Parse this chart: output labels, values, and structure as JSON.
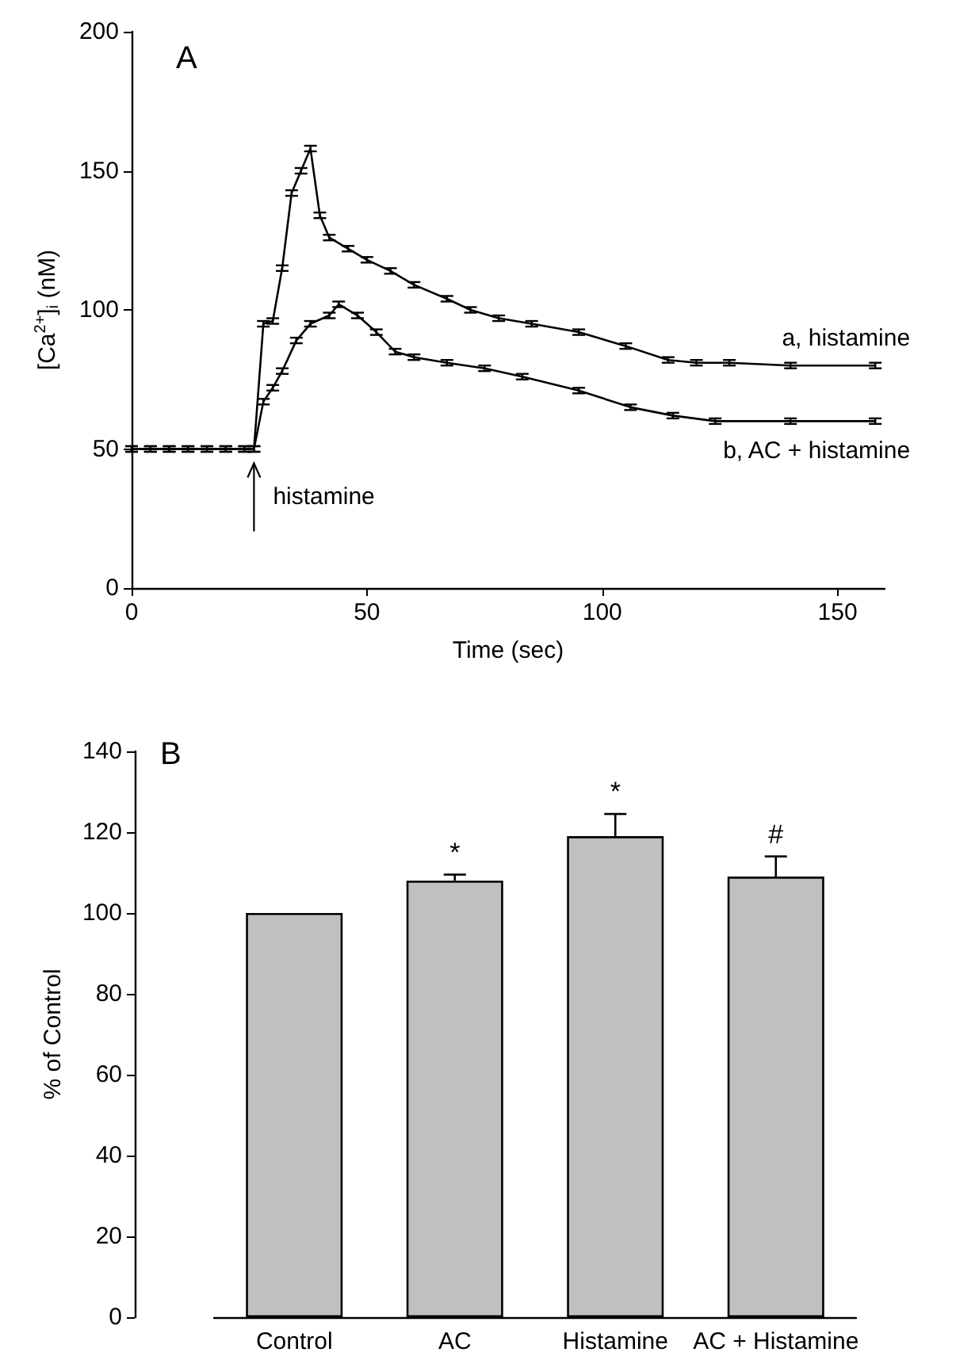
{
  "chart_data": [
    {
      "type": "line",
      "title": "A",
      "xlabel": "Time (sec)",
      "ylabel": "[Ca$^{2+}$]$_{i}$ (nM)",
      "xlim": [
        0,
        160
      ],
      "xticks": [
        0,
        50,
        100,
        150
      ],
      "ylim": [
        0,
        200
      ],
      "yticks": [
        0,
        50,
        100,
        150,
        200
      ],
      "grid": false,
      "legend": false,
      "series": [
        {
          "name": "a, histamine",
          "color": "#000000",
          "x": [
            0,
            4,
            8,
            12,
            16,
            20,
            24,
            26,
            28,
            30,
            32,
            34,
            36,
            38,
            40,
            42,
            46,
            50,
            55,
            60,
            67,
            72,
            78,
            85,
            95,
            105,
            114,
            120,
            127,
            140,
            158
          ],
          "values": [
            50,
            50,
            50,
            50,
            50,
            50,
            50,
            50,
            95,
            96,
            115,
            142,
            150,
            158,
            134,
            126,
            122,
            118,
            114,
            109,
            104,
            100,
            97,
            95,
            92,
            87,
            82,
            81,
            81,
            80,
            80
          ],
          "errors": [
            1,
            1,
            1,
            1,
            1,
            1,
            1,
            1,
            1,
            1,
            1,
            1,
            1,
            1,
            1,
            1,
            1,
            1,
            1,
            1,
            1,
            1,
            1,
            1,
            1,
            1,
            1,
            1,
            1,
            1,
            1
          ]
        },
        {
          "name": "b, AC + histamine",
          "color": "#000000",
          "x": [
            0,
            4,
            8,
            12,
            16,
            20,
            24,
            26,
            28,
            30,
            32,
            35,
            38,
            42,
            44,
            48,
            52,
            56,
            60,
            67,
            75,
            83,
            95,
            106,
            115,
            124,
            140,
            158
          ],
          "values": [
            50,
            50,
            50,
            50,
            50,
            50,
            50,
            50,
            67,
            72,
            78,
            89,
            95,
            98,
            102,
            98,
            92,
            85,
            83,
            81,
            79,
            76,
            71,
            65,
            62,
            60,
            60,
            60
          ],
          "errors": [
            1,
            1,
            1,
            1,
            1,
            1,
            1,
            1,
            1,
            1,
            1,
            1,
            1,
            1,
            1,
            1,
            1,
            1,
            1,
            1,
            1,
            1,
            1,
            1,
            1,
            1,
            1,
            1
          ]
        }
      ],
      "annotations": [
        {
          "text": "histamine",
          "x": 26,
          "y": 50
        }
      ]
    },
    {
      "type": "bar",
      "title": "B",
      "ylabel": "% of Control",
      "categories": [
        "Control",
        "AC",
        "Histamine",
        "AC + Histamine"
      ],
      "values": [
        100,
        108,
        119,
        109
      ],
      "color": "#c0c0c0",
      "errors": [
        null,
        [
          108,
          109.5
        ],
        [
          119,
          124.5
        ],
        [
          109,
          114
        ]
      ],
      "ylim": [
        0,
        140
      ],
      "yticks": [
        0,
        20,
        40,
        60,
        80,
        100,
        120,
        140
      ],
      "grid": false,
      "legend": false,
      "annotations": [
        {
          "text": "*",
          "x": "AC",
          "y": 109.5
        },
        {
          "text": "*",
          "x": "Histamine",
          "y": 124.5
        },
        {
          "text": "#",
          "x": "AC + Histamine",
          "y": 114
        }
      ]
    }
  ]
}
